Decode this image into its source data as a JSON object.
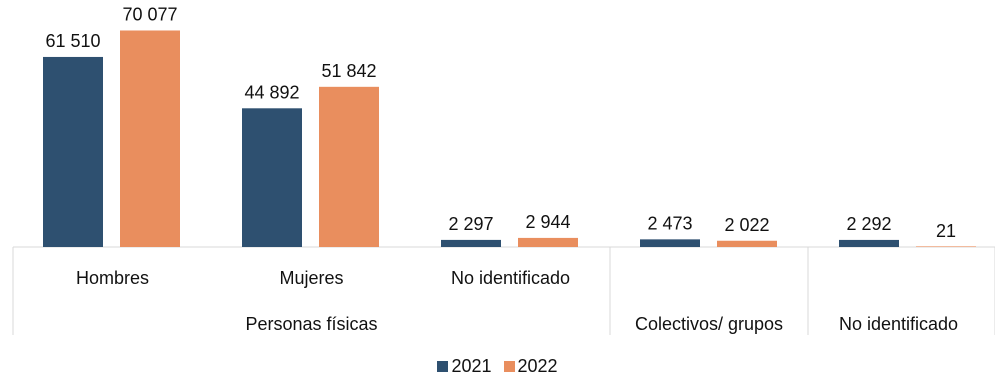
{
  "chart_data": {
    "type": "bar",
    "series": [
      {
        "name": "2021",
        "color": "#2E5070",
        "values": [
          61510,
          44892,
          2297,
          2473,
          2292
        ]
      },
      {
        "name": "2022",
        "color": "#E98E5E",
        "values": [
          70077,
          51842,
          2944,
          2022,
          21
        ]
      }
    ],
    "value_labels": {
      "2021": [
        "61 510",
        "44 892",
        "2 297",
        "2 473",
        "2 292"
      ],
      "2022": [
        "70 077",
        "51 842",
        "2 944",
        "2 022",
        "21"
      ]
    },
    "categories": [
      "Hombres",
      "Mujeres",
      "No identificado",
      "",
      ""
    ],
    "group_labels": [
      "Personas físicas",
      "Colectivos/ grupos",
      "No identificado"
    ],
    "ylim": [
      0,
      78000
    ],
    "grid": false,
    "legend_position": "bottom"
  }
}
